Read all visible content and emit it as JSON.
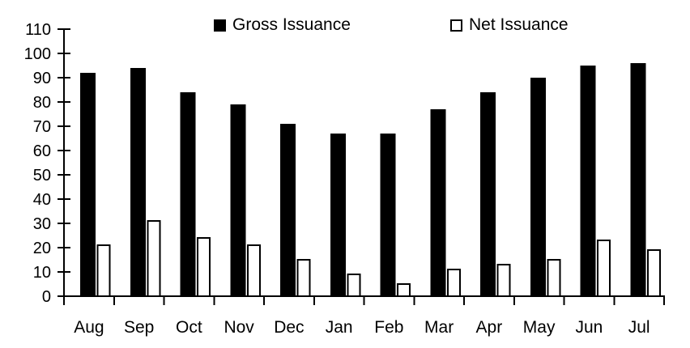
{
  "chart_data": {
    "type": "bar",
    "title": "",
    "categories": [
      "Aug",
      "Sep",
      "Oct",
      "Nov",
      "Dec",
      "Jan",
      "Feb",
      "Mar",
      "Apr",
      "May",
      "Jun",
      "Jul"
    ],
    "series": [
      {
        "name": "Gross Issuance",
        "values": [
          92,
          94,
          84,
          79,
          71,
          67,
          67,
          77,
          84,
          90,
          95,
          96
        ],
        "fill": "#000000",
        "stroke": "#000000"
      },
      {
        "name": "Net Issuance",
        "values": [
          21,
          31,
          24,
          21,
          15,
          9,
          5,
          11,
          13,
          15,
          23,
          19
        ],
        "fill": "#ffffff",
        "stroke": "#000000"
      }
    ],
    "xlabel": "",
    "ylabel": "",
    "ylim": [
      0,
      110
    ],
    "ytick_step": 10,
    "ytick_labels": [
      "0",
      "10",
      "20",
      "30",
      "40",
      "50",
      "60",
      "70",
      "80",
      "90",
      "100",
      "110"
    ],
    "grid": false,
    "legend_position": "top",
    "axis_color": "#000000",
    "text_color": "#000000",
    "background_color": "#ffffff"
  }
}
